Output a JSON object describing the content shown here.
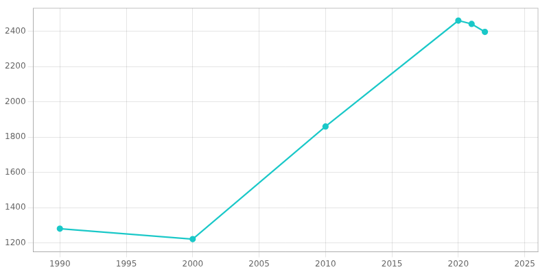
{
  "chart_data": {
    "type": "line",
    "x": [
      1990,
      2000,
      2010,
      2020,
      2021,
      2022
    ],
    "values": [
      1281,
      1222,
      1860,
      2460,
      2441,
      2396
    ],
    "color": "#1ac8c8",
    "marker": "circle",
    "xlim": [
      1988,
      2026
    ],
    "ylim": [
      1150,
      2530
    ],
    "xticks": [
      1990,
      1995,
      2000,
      2005,
      2010,
      2015,
      2020,
      2025
    ],
    "yticks": [
      1200,
      1400,
      1600,
      1800,
      2000,
      2200,
      2400
    ],
    "grid": true
  }
}
